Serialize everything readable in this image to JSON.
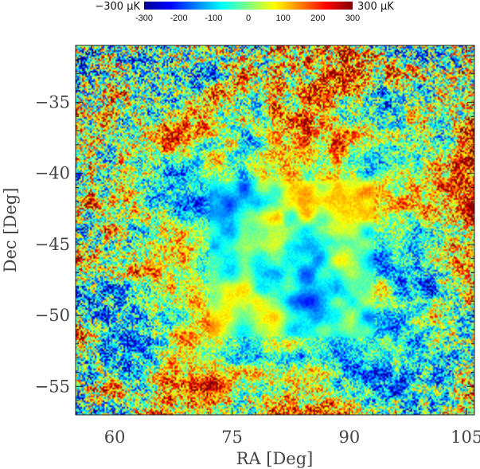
{
  "chart_data": {
    "type": "heatmap",
    "title": "",
    "xlabel": "RA [Deg]",
    "ylabel": "Dec [Deg]",
    "xlim": [
      55,
      106
    ],
    "ylim": [
      -57,
      -31
    ],
    "x_ticks": [
      60,
      75,
      90,
      105
    ],
    "y_ticks": [
      -35,
      -40,
      -45,
      -50,
      -55
    ],
    "x_tick_labels": [
      "60",
      "75",
      "90",
      "105"
    ],
    "y_tick_labels": [
      "−35",
      "−40",
      "−45",
      "−50",
      "−55"
    ],
    "colorbar": {
      "min_label": "−300  μK",
      "max_label": "300  μK",
      "range": [
        -300,
        300
      ],
      "ticks": [
        -300,
        -200,
        -100,
        0,
        100,
        200,
        300
      ],
      "tick_labels": [
        "-300",
        "-200",
        "-100",
        "0",
        "100",
        "200",
        "300"
      ],
      "colormap": "jet"
    },
    "features": {
      "deep_field_ra": [
        72,
        93
      ],
      "deep_field_dec": [
        -51.5,
        -40.5
      ]
    },
    "grid": false,
    "legend": "none"
  }
}
